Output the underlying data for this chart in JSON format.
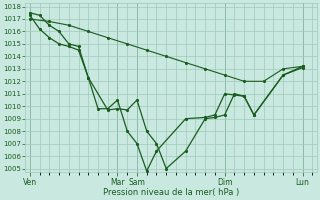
{
  "bg_color": "#c8e8e0",
  "grid_color": "#a0c8bc",
  "line_color": "#1a5c1e",
  "xlabel": "Pression niveau de la mer( hPa )",
  "ylim_min": 1005,
  "ylim_max": 1018,
  "day_labels": [
    "Ven",
    "Mar",
    "Sam",
    "Dim",
    "Lun"
  ],
  "day_positions": [
    0,
    9,
    11,
    20,
    28
  ],
  "xmax": 29,
  "line1_x": [
    0,
    2,
    4,
    6,
    8,
    10,
    12,
    14,
    16,
    18,
    20,
    22,
    24,
    26,
    28
  ],
  "line1_y": [
    1017.0,
    1016.8,
    1016.5,
    1016.0,
    1015.5,
    1015.0,
    1014.5,
    1014.0,
    1013.5,
    1013.0,
    1012.5,
    1012.0,
    1012.0,
    1013.0,
    1013.2
  ],
  "line2_x": [
    0,
    1,
    2,
    3,
    4,
    5,
    6,
    8,
    9,
    10,
    11,
    12,
    13,
    14,
    16,
    18,
    19,
    20,
    21,
    22,
    23,
    26,
    28
  ],
  "line2_y": [
    1017.3,
    1016.2,
    1015.5,
    1015.0,
    1014.8,
    1014.5,
    1012.3,
    1009.7,
    1009.8,
    1009.7,
    1010.5,
    1008.0,
    1007.0,
    1005.0,
    1006.4,
    1009.0,
    1009.1,
    1009.3,
    1011.0,
    1010.8,
    1009.3,
    1012.5,
    1013.1
  ],
  "line3_x": [
    0,
    1,
    2,
    3,
    4,
    5,
    6,
    7,
    8,
    9,
    10,
    11,
    12,
    13,
    16,
    18,
    19,
    20,
    21,
    22,
    23,
    26,
    28
  ],
  "line3_y": [
    1017.5,
    1017.3,
    1016.5,
    1016.0,
    1015.0,
    1014.8,
    1012.3,
    1009.8,
    1009.8,
    1010.5,
    1008.0,
    1007.0,
    1004.8,
    1006.4,
    1009.0,
    1009.1,
    1009.3,
    1011.0,
    1010.9,
    1010.8,
    1009.3,
    1012.5,
    1013.2
  ]
}
